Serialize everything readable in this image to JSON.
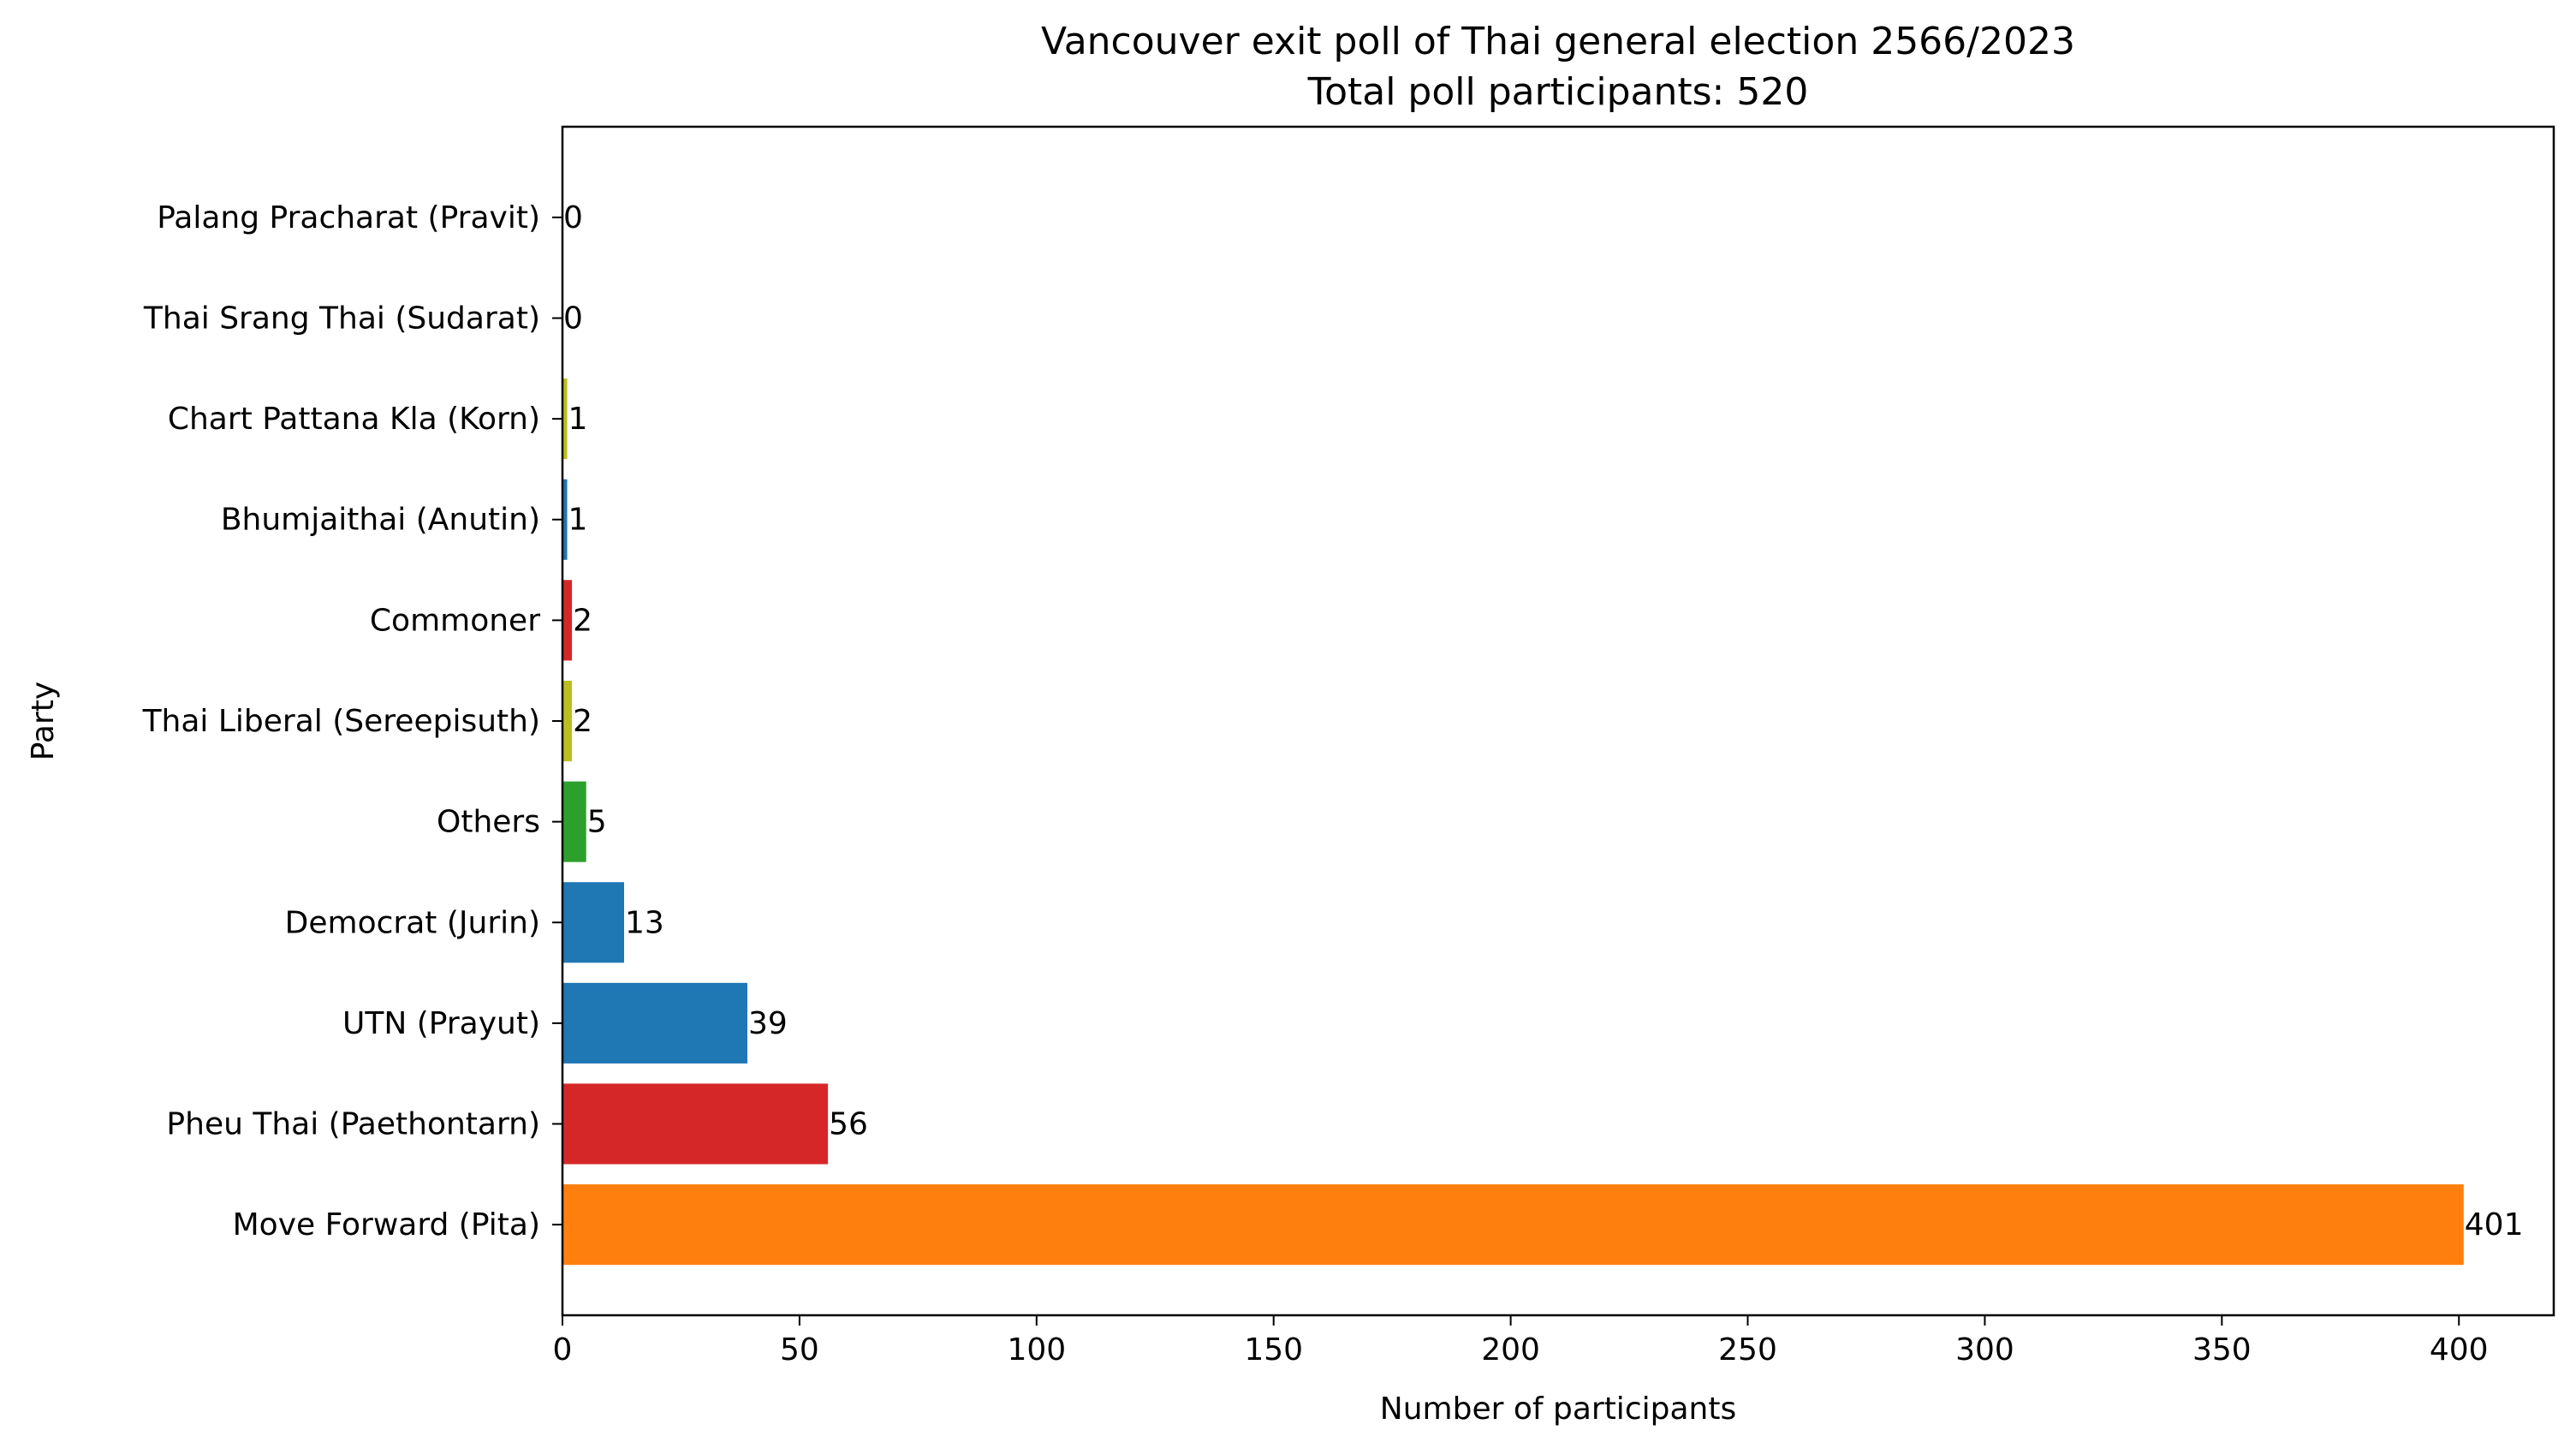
{
  "chart_data": {
    "type": "bar",
    "orientation": "horizontal",
    "title": "Vancouver exit poll of Thai general election 2566/2023",
    "subtitle": "Total poll participants: 520",
    "xlabel": "Number of participants",
    "ylabel": "Party",
    "xlim": [
      0,
      420
    ],
    "xticks": [
      0,
      50,
      100,
      150,
      200,
      250,
      300,
      350,
      400
    ],
    "grid": false,
    "categories": [
      "Move Forward (Pita)",
      "Pheu Thai (Paethontarn)",
      "UTN (Prayut)",
      "Democrat (Jurin)",
      "Others",
      "Thai Liberal (Sereepisuth)",
      "Commoner",
      "Bhumjaithai (Anutin)",
      "Chart Pattana Kla (Korn)",
      "Thai Srang Thai (Sudarat)",
      "Palang Pracharat (Pravit)"
    ],
    "values": [
      401,
      56,
      39,
      13,
      5,
      2,
      2,
      1,
      1,
      0,
      0
    ],
    "data_labels": [
      "401",
      "56",
      "39",
      "13",
      "5",
      "2",
      "2",
      "1",
      "1",
      "0",
      "0"
    ],
    "colors": [
      "#ff7f0e",
      "#d62728",
      "#1f77b4",
      "#1f77b4",
      "#2ca02c",
      "#bcbd22",
      "#d62728",
      "#1f77b4",
      "#bcbd22",
      "#bcbd22",
      "#1f77b4"
    ]
  }
}
